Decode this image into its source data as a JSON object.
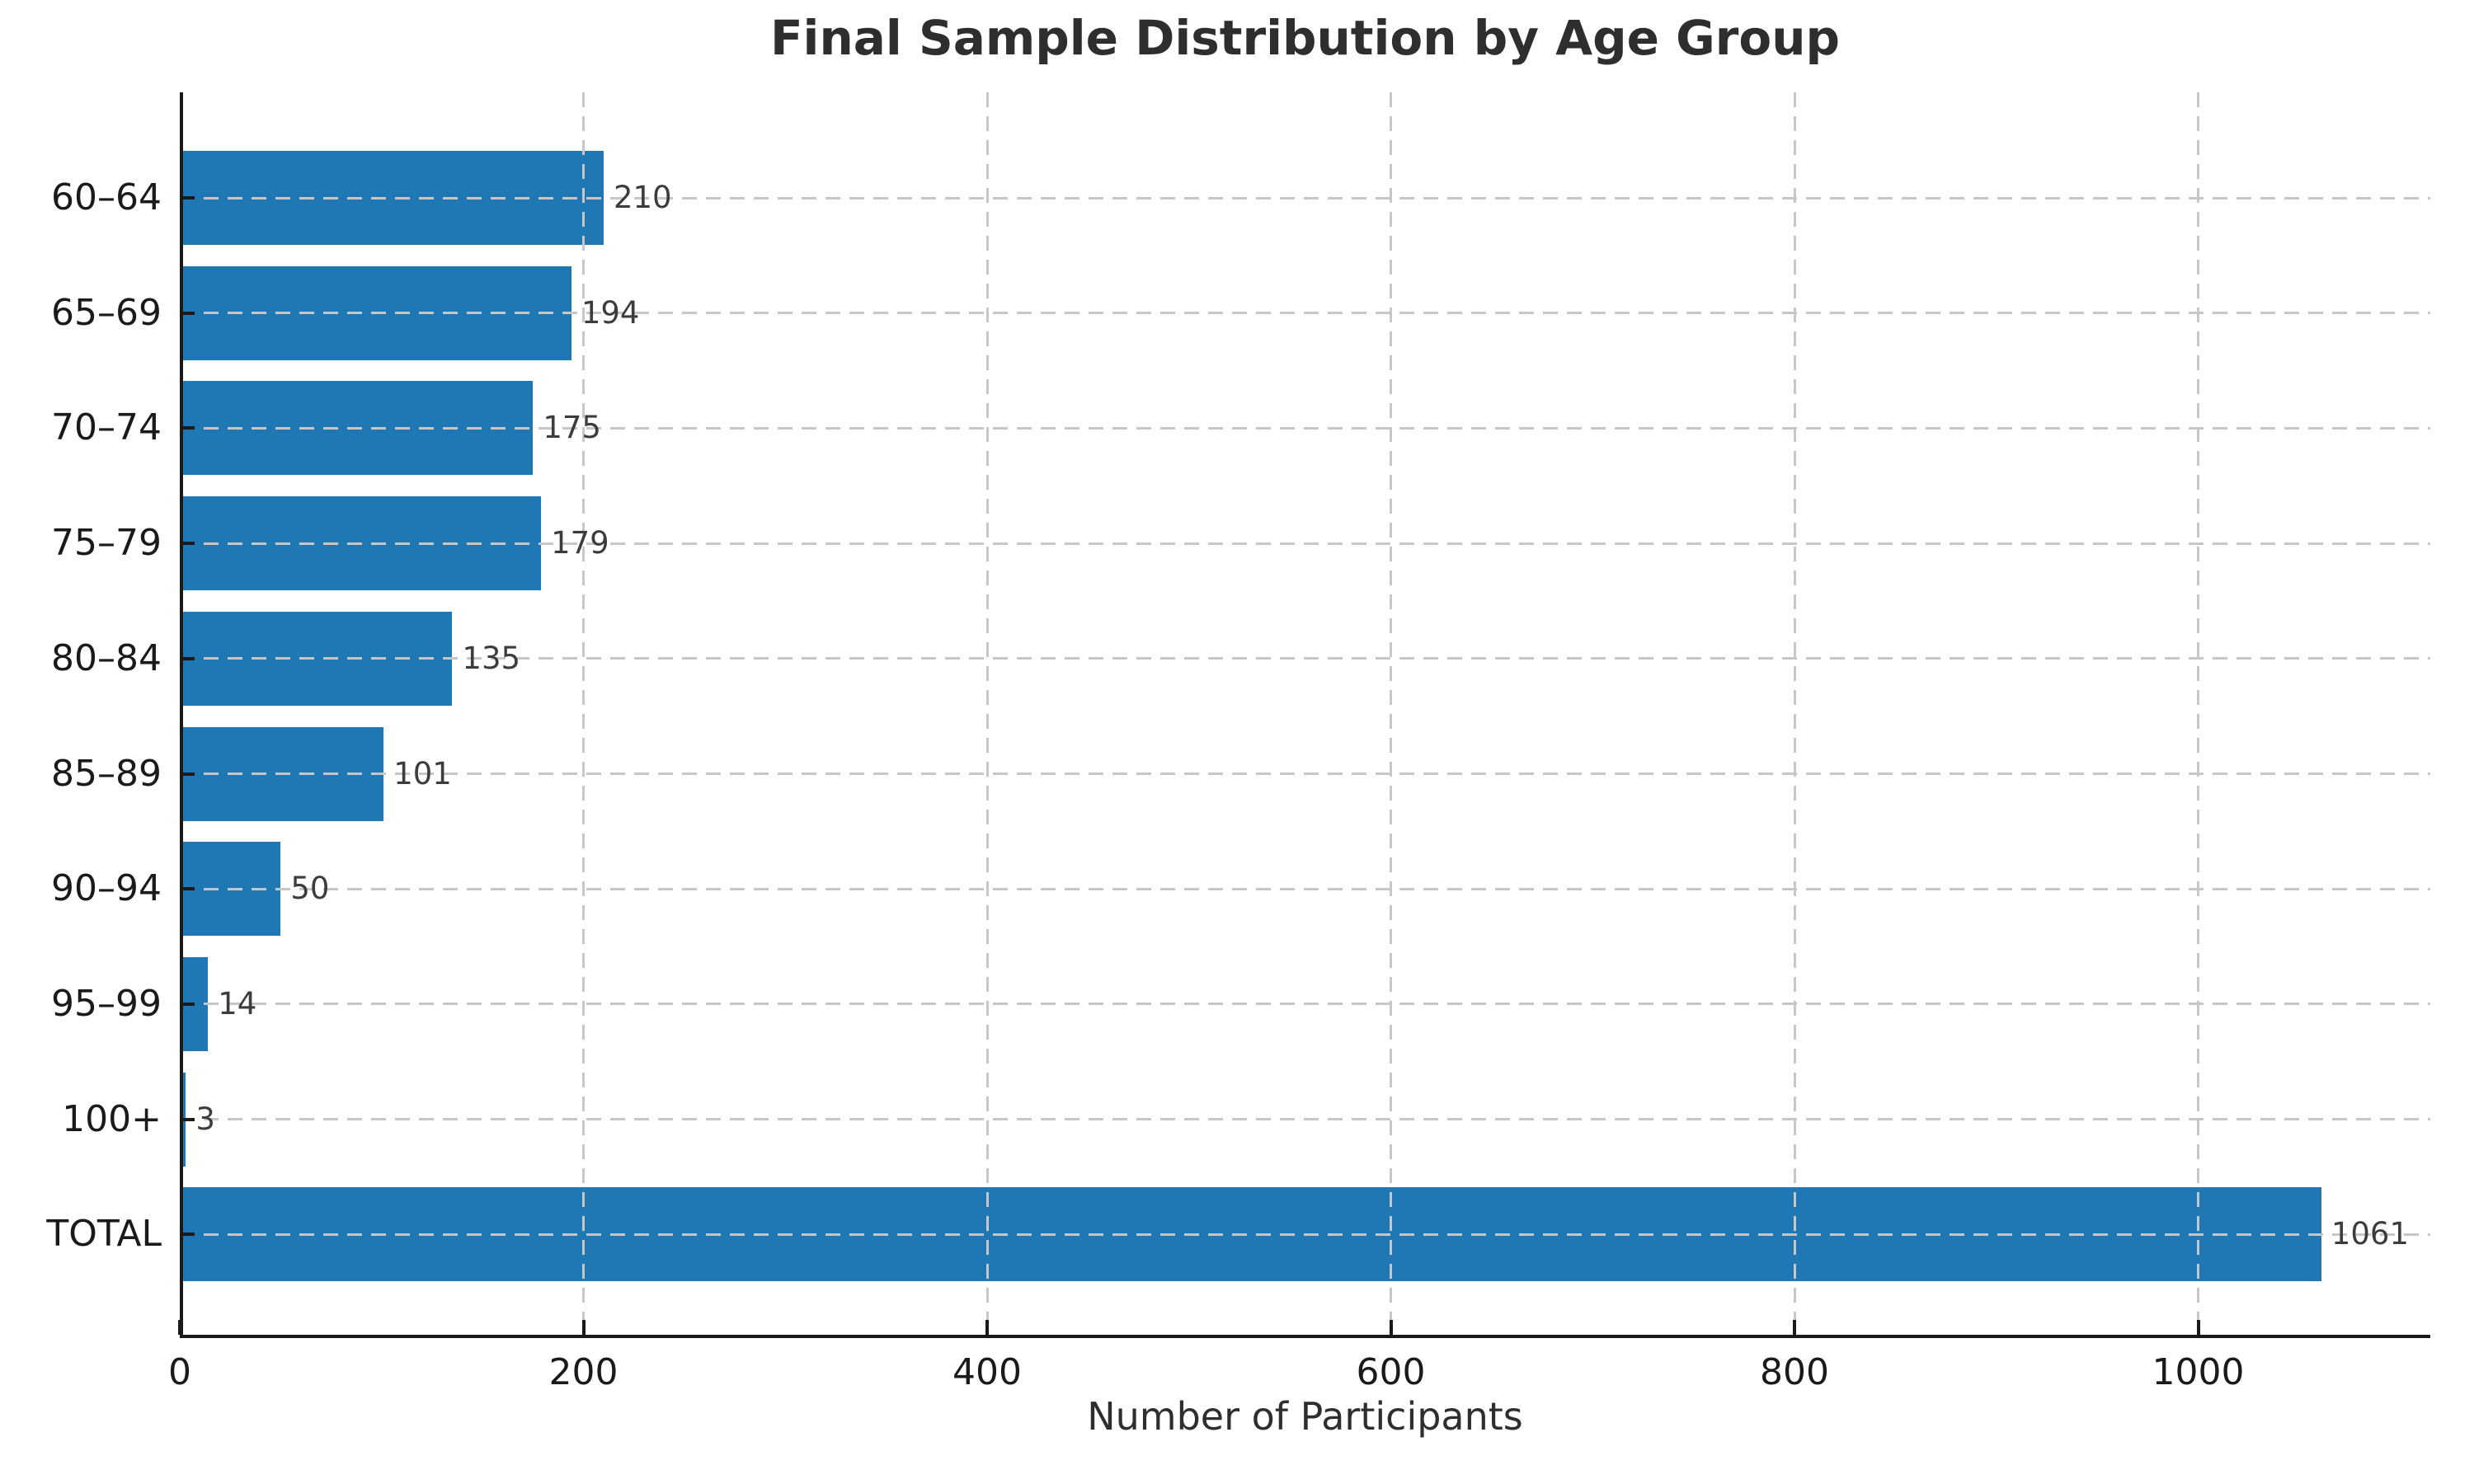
{
  "chart_data": {
    "type": "bar",
    "orientation": "horizontal",
    "title": "Final Sample Distribution by Age Group",
    "xlabel": "Number of Participants",
    "ylabel": "",
    "categories": [
      "60–64",
      "65–69",
      "70–74",
      "75–79",
      "80–84",
      "85–89",
      "90–94",
      "95–99",
      "100+",
      "TOTAL"
    ],
    "values": [
      210,
      194,
      175,
      179,
      135,
      101,
      50,
      14,
      3,
      1061
    ],
    "value_labels": [
      "210",
      "194",
      "175",
      "179",
      "135",
      "101",
      "50",
      "14",
      "3",
      "1061"
    ],
    "x_ticks": [
      0,
      200,
      400,
      600,
      800,
      1000
    ],
    "xlim": [
      0,
      1115
    ],
    "grid": true,
    "grid_linestyle": "dashed",
    "legend": false,
    "colors": {
      "bar": "#1f77b4",
      "grid": "#c7c7c7",
      "axis": "#1a1a1a",
      "title_text": "#2e2e2e",
      "tick_text": "#1a1a1a",
      "value_text": "#3c3c3c"
    }
  }
}
